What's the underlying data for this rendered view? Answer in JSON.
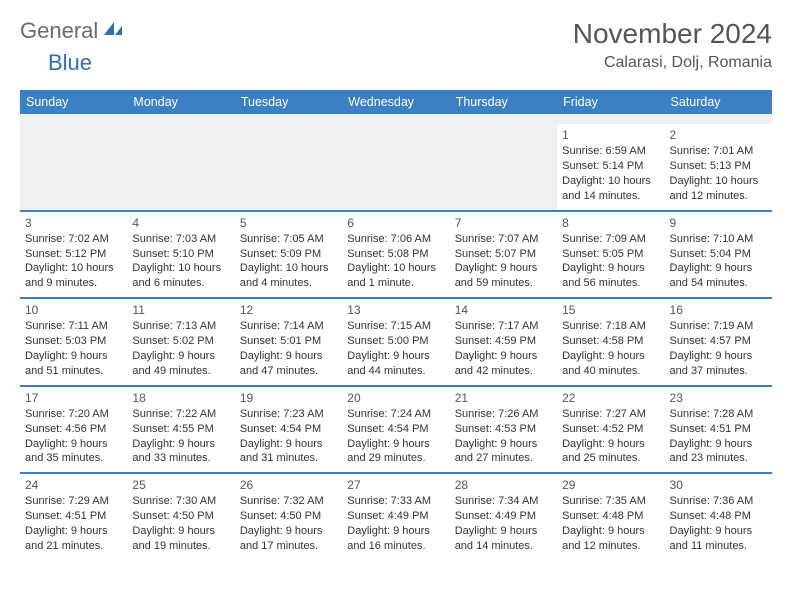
{
  "logo": {
    "general": "General",
    "blue": "Blue"
  },
  "title": "November 2024",
  "location": "Calarasi, Dolj, Romania",
  "colors": {
    "header_bg": "#3b7fc4",
    "header_text": "#ffffff",
    "border": "#3b7fc4",
    "text": "#333333",
    "blank_bg": "#eef0f2",
    "logo_gray": "#6b6b6b",
    "logo_blue": "#2f6fb0"
  },
  "typography": {
    "title_fontsize": 28,
    "location_fontsize": 16,
    "header_fontsize": 12.5,
    "cell_fontsize": 11
  },
  "day_headers": [
    "Sunday",
    "Monday",
    "Tuesday",
    "Wednesday",
    "Thursday",
    "Friday",
    "Saturday"
  ],
  "weeks": [
    [
      null,
      null,
      null,
      null,
      null,
      {
        "n": "1",
        "sr": "Sunrise: 6:59 AM",
        "ss": "Sunset: 5:14 PM",
        "dl": "Daylight: 10 hours and 14 minutes."
      },
      {
        "n": "2",
        "sr": "Sunrise: 7:01 AM",
        "ss": "Sunset: 5:13 PM",
        "dl": "Daylight: 10 hours and 12 minutes."
      }
    ],
    [
      {
        "n": "3",
        "sr": "Sunrise: 7:02 AM",
        "ss": "Sunset: 5:12 PM",
        "dl": "Daylight: 10 hours and 9 minutes."
      },
      {
        "n": "4",
        "sr": "Sunrise: 7:03 AM",
        "ss": "Sunset: 5:10 PM",
        "dl": "Daylight: 10 hours and 6 minutes."
      },
      {
        "n": "5",
        "sr": "Sunrise: 7:05 AM",
        "ss": "Sunset: 5:09 PM",
        "dl": "Daylight: 10 hours and 4 minutes."
      },
      {
        "n": "6",
        "sr": "Sunrise: 7:06 AM",
        "ss": "Sunset: 5:08 PM",
        "dl": "Daylight: 10 hours and 1 minute."
      },
      {
        "n": "7",
        "sr": "Sunrise: 7:07 AM",
        "ss": "Sunset: 5:07 PM",
        "dl": "Daylight: 9 hours and 59 minutes."
      },
      {
        "n": "8",
        "sr": "Sunrise: 7:09 AM",
        "ss": "Sunset: 5:05 PM",
        "dl": "Daylight: 9 hours and 56 minutes."
      },
      {
        "n": "9",
        "sr": "Sunrise: 7:10 AM",
        "ss": "Sunset: 5:04 PM",
        "dl": "Daylight: 9 hours and 54 minutes."
      }
    ],
    [
      {
        "n": "10",
        "sr": "Sunrise: 7:11 AM",
        "ss": "Sunset: 5:03 PM",
        "dl": "Daylight: 9 hours and 51 minutes."
      },
      {
        "n": "11",
        "sr": "Sunrise: 7:13 AM",
        "ss": "Sunset: 5:02 PM",
        "dl": "Daylight: 9 hours and 49 minutes."
      },
      {
        "n": "12",
        "sr": "Sunrise: 7:14 AM",
        "ss": "Sunset: 5:01 PM",
        "dl": "Daylight: 9 hours and 47 minutes."
      },
      {
        "n": "13",
        "sr": "Sunrise: 7:15 AM",
        "ss": "Sunset: 5:00 PM",
        "dl": "Daylight: 9 hours and 44 minutes."
      },
      {
        "n": "14",
        "sr": "Sunrise: 7:17 AM",
        "ss": "Sunset: 4:59 PM",
        "dl": "Daylight: 9 hours and 42 minutes."
      },
      {
        "n": "15",
        "sr": "Sunrise: 7:18 AM",
        "ss": "Sunset: 4:58 PM",
        "dl": "Daylight: 9 hours and 40 minutes."
      },
      {
        "n": "16",
        "sr": "Sunrise: 7:19 AM",
        "ss": "Sunset: 4:57 PM",
        "dl": "Daylight: 9 hours and 37 minutes."
      }
    ],
    [
      {
        "n": "17",
        "sr": "Sunrise: 7:20 AM",
        "ss": "Sunset: 4:56 PM",
        "dl": "Daylight: 9 hours and 35 minutes."
      },
      {
        "n": "18",
        "sr": "Sunrise: 7:22 AM",
        "ss": "Sunset: 4:55 PM",
        "dl": "Daylight: 9 hours and 33 minutes."
      },
      {
        "n": "19",
        "sr": "Sunrise: 7:23 AM",
        "ss": "Sunset: 4:54 PM",
        "dl": "Daylight: 9 hours and 31 minutes."
      },
      {
        "n": "20",
        "sr": "Sunrise: 7:24 AM",
        "ss": "Sunset: 4:54 PM",
        "dl": "Daylight: 9 hours and 29 minutes."
      },
      {
        "n": "21",
        "sr": "Sunrise: 7:26 AM",
        "ss": "Sunset: 4:53 PM",
        "dl": "Daylight: 9 hours and 27 minutes."
      },
      {
        "n": "22",
        "sr": "Sunrise: 7:27 AM",
        "ss": "Sunset: 4:52 PM",
        "dl": "Daylight: 9 hours and 25 minutes."
      },
      {
        "n": "23",
        "sr": "Sunrise: 7:28 AM",
        "ss": "Sunset: 4:51 PM",
        "dl": "Daylight: 9 hours and 23 minutes."
      }
    ],
    [
      {
        "n": "24",
        "sr": "Sunrise: 7:29 AM",
        "ss": "Sunset: 4:51 PM",
        "dl": "Daylight: 9 hours and 21 minutes."
      },
      {
        "n": "25",
        "sr": "Sunrise: 7:30 AM",
        "ss": "Sunset: 4:50 PM",
        "dl": "Daylight: 9 hours and 19 minutes."
      },
      {
        "n": "26",
        "sr": "Sunrise: 7:32 AM",
        "ss": "Sunset: 4:50 PM",
        "dl": "Daylight: 9 hours and 17 minutes."
      },
      {
        "n": "27",
        "sr": "Sunrise: 7:33 AM",
        "ss": "Sunset: 4:49 PM",
        "dl": "Daylight: 9 hours and 16 minutes."
      },
      {
        "n": "28",
        "sr": "Sunrise: 7:34 AM",
        "ss": "Sunset: 4:49 PM",
        "dl": "Daylight: 9 hours and 14 minutes."
      },
      {
        "n": "29",
        "sr": "Sunrise: 7:35 AM",
        "ss": "Sunset: 4:48 PM",
        "dl": "Daylight: 9 hours and 12 minutes."
      },
      {
        "n": "30",
        "sr": "Sunrise: 7:36 AM",
        "ss": "Sunset: 4:48 PM",
        "dl": "Daylight: 9 hours and 11 minutes."
      }
    ]
  ]
}
